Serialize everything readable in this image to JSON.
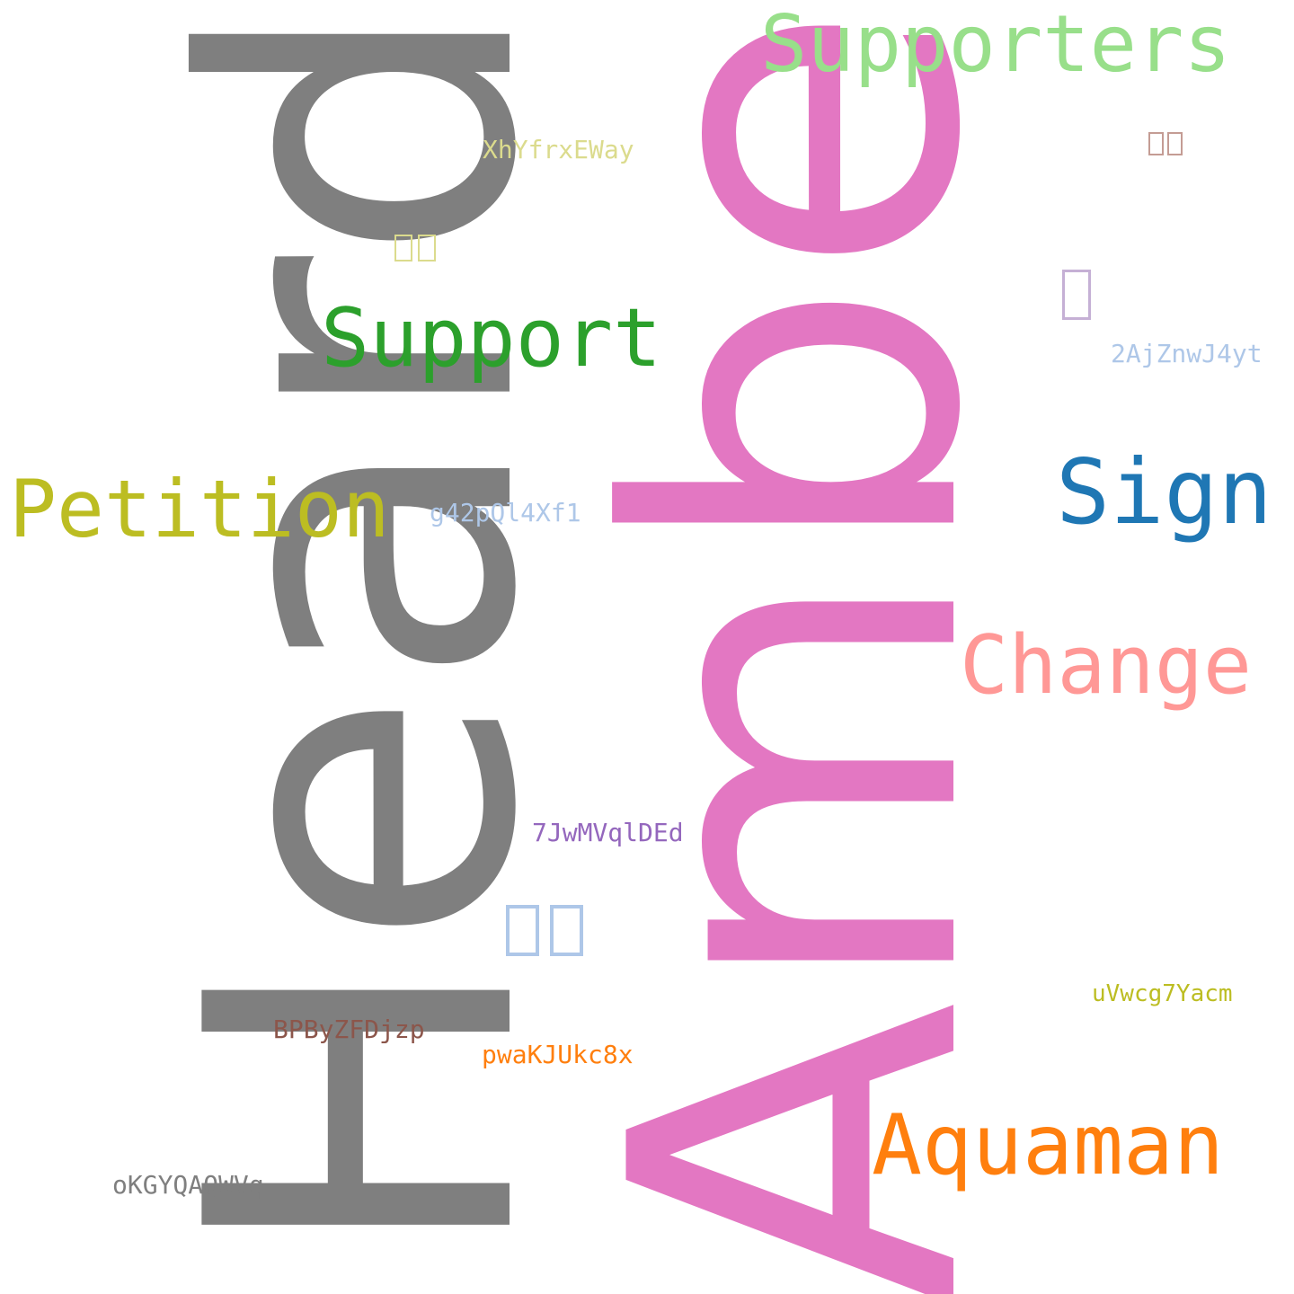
{
  "words": [
    {
      "id": "heard",
      "text": "Heard",
      "color": "#7f7f7f"
    },
    {
      "id": "amber",
      "text": "Amber",
      "color": "#e377c2"
    },
    {
      "id": "supporters",
      "text": "Supporters",
      "color": "#98df8a"
    },
    {
      "id": "support",
      "text": "Support",
      "color": "#2ca02c"
    },
    {
      "id": "petition",
      "text": "Petition",
      "color": "#bcbd22"
    },
    {
      "id": "sign",
      "text": "Sign",
      "color": "#1f77b4"
    },
    {
      "id": "change",
      "text": "Change",
      "color": "#ff9896"
    },
    {
      "id": "aquaman",
      "text": "Aquaman",
      "color": "#ff7f0e"
    },
    {
      "id": "xhyfrxeway",
      "text": "XhYfrxEWay",
      "color": "#dbdb8d"
    },
    {
      "id": "2ajznwj4yt",
      "text": "2AjZnwJ4yt",
      "color": "#aec7e8"
    },
    {
      "id": "g42pql4xf1",
      "text": "g42pQl4Xf1",
      "color": "#aec7e8"
    },
    {
      "id": "7jwmvqlded",
      "text": "7JwMVqlDEd",
      "color": "#9467bd"
    },
    {
      "id": "uvwcg7yacm",
      "text": "uVwcg7Yacm",
      "color": "#bcbd22"
    },
    {
      "id": "bpbyzfdjzp",
      "text": "BPByZFDjzp",
      "color": "#8c564b"
    },
    {
      "id": "pwakjukc8x",
      "text": "pwaKJUkc8x",
      "color": "#ff7f0e"
    },
    {
      "id": "okgyqaqwvq",
      "text": "oKGYQAQWVq",
      "color": "#7f7f7f"
    }
  ],
  "glyph_boxes": [
    {
      "id": "box-top-right",
      "color": "#c49c94"
    },
    {
      "id": "box-upper-left",
      "color": "#dbdb8d"
    },
    {
      "id": "box-right",
      "color": "#c5b0d5"
    },
    {
      "id": "box-middle",
      "color": "#aec7e8"
    }
  ]
}
